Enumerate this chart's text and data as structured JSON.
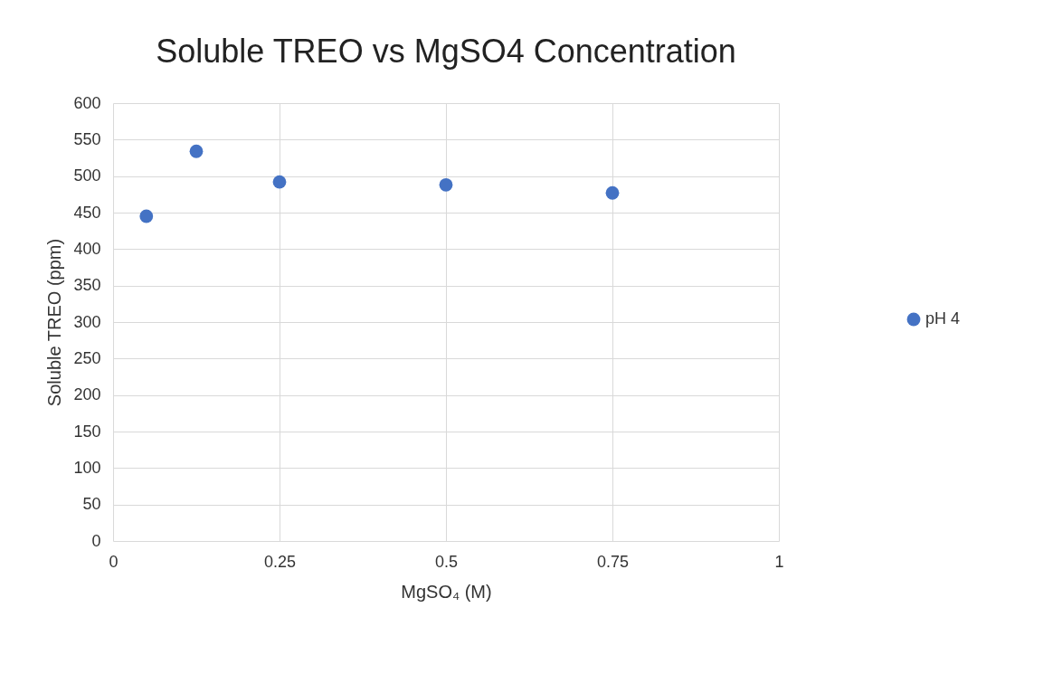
{
  "chart_data": {
    "type": "scatter",
    "title": "Soluble TREO vs MgSO4 Concentration",
    "xlabel": "MgSO₄ (M)",
    "ylabel": "Soluble TREO (ppm)",
    "x": [
      0.05,
      0.125,
      0.25,
      0.5,
      0.75
    ],
    "series": [
      {
        "name": "pH 4",
        "color": "#4472c4",
        "values": [
          445,
          534,
          492,
          488,
          477
        ]
      }
    ],
    "xlim": [
      0,
      1
    ],
    "xticks": [
      0,
      0.25,
      0.5,
      0.75,
      1
    ],
    "ylim": [
      0,
      600
    ],
    "yticks": [
      0,
      50,
      100,
      150,
      200,
      250,
      300,
      350,
      400,
      450,
      500,
      550,
      600
    ],
    "grid": true,
    "legend": "right",
    "marker": "circle"
  }
}
